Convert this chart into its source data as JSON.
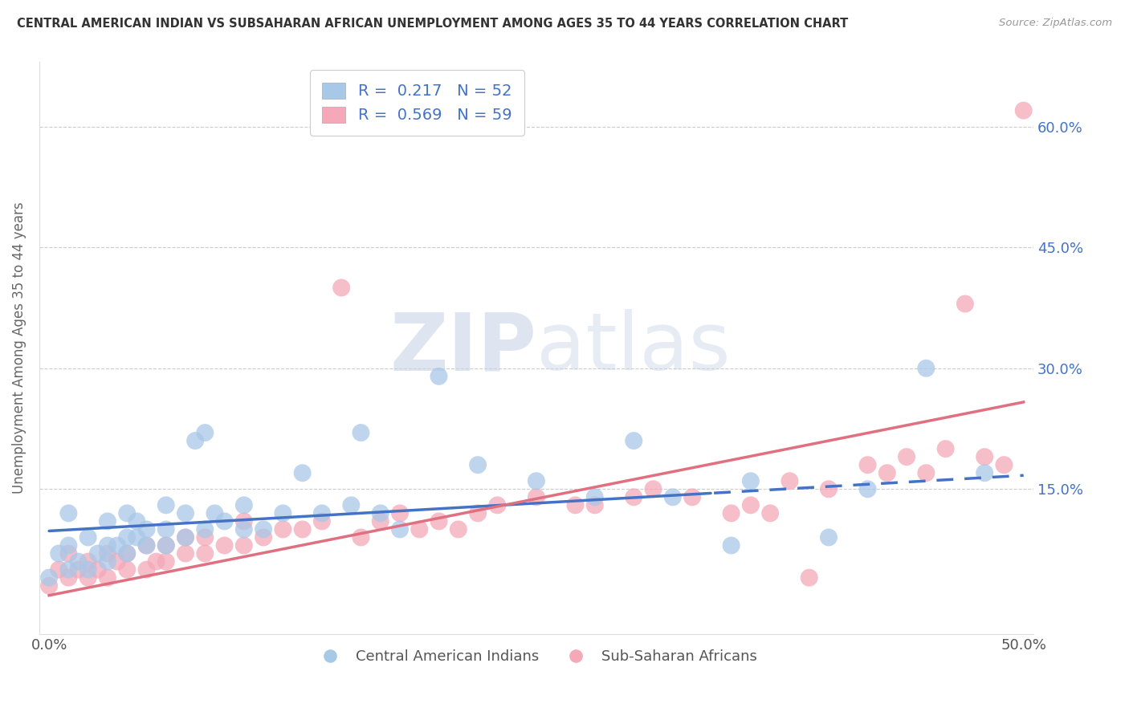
{
  "title": "CENTRAL AMERICAN INDIAN VS SUBSAHARAN AFRICAN UNEMPLOYMENT AMONG AGES 35 TO 44 YEARS CORRELATION CHART",
  "source": "Source: ZipAtlas.com",
  "ylabel": "Unemployment Among Ages 35 to 44 years",
  "xlim": [
    -0.005,
    0.505
  ],
  "ylim": [
    -0.03,
    0.68
  ],
  "xtick_labels": [
    "0.0%",
    "50.0%"
  ],
  "xtick_vals": [
    0.0,
    0.5
  ],
  "ytick_labels": [
    "15.0%",
    "30.0%",
    "45.0%",
    "60.0%"
  ],
  "yticks": [
    0.15,
    0.3,
    0.45,
    0.6
  ],
  "blue_R": 0.217,
  "blue_N": 52,
  "pink_R": 0.569,
  "pink_N": 59,
  "blue_color": "#a8c8e8",
  "pink_color": "#f4a8b8",
  "blue_line_color": "#4472C4",
  "pink_line_color": "#E07080",
  "legend_label_blue": "Central American Indians",
  "legend_label_pink": "Sub-Saharan Africans",
  "blue_line_intercept": 0.098,
  "blue_line_slope": 0.138,
  "pink_line_intercept": 0.018,
  "pink_line_slope": 0.48,
  "blue_scatter_x": [
    0.0,
    0.005,
    0.01,
    0.01,
    0.01,
    0.015,
    0.02,
    0.02,
    0.025,
    0.03,
    0.03,
    0.03,
    0.035,
    0.04,
    0.04,
    0.04,
    0.045,
    0.045,
    0.05,
    0.05,
    0.06,
    0.06,
    0.06,
    0.07,
    0.07,
    0.075,
    0.08,
    0.08,
    0.085,
    0.09,
    0.1,
    0.1,
    0.11,
    0.12,
    0.13,
    0.14,
    0.155,
    0.16,
    0.17,
    0.18,
    0.2,
    0.22,
    0.25,
    0.28,
    0.3,
    0.32,
    0.35,
    0.36,
    0.4,
    0.42,
    0.45,
    0.48
  ],
  "blue_scatter_y": [
    0.04,
    0.07,
    0.05,
    0.08,
    0.12,
    0.06,
    0.05,
    0.09,
    0.07,
    0.06,
    0.08,
    0.11,
    0.08,
    0.07,
    0.09,
    0.12,
    0.09,
    0.11,
    0.08,
    0.1,
    0.08,
    0.1,
    0.13,
    0.09,
    0.12,
    0.21,
    0.1,
    0.22,
    0.12,
    0.11,
    0.1,
    0.13,
    0.1,
    0.12,
    0.17,
    0.12,
    0.13,
    0.22,
    0.12,
    0.1,
    0.29,
    0.18,
    0.16,
    0.14,
    0.21,
    0.14,
    0.08,
    0.16,
    0.09,
    0.15,
    0.3,
    0.17
  ],
  "pink_scatter_x": [
    0.0,
    0.005,
    0.01,
    0.01,
    0.015,
    0.02,
    0.02,
    0.025,
    0.03,
    0.03,
    0.035,
    0.04,
    0.04,
    0.05,
    0.05,
    0.055,
    0.06,
    0.06,
    0.07,
    0.07,
    0.08,
    0.08,
    0.09,
    0.1,
    0.1,
    0.11,
    0.12,
    0.13,
    0.14,
    0.15,
    0.16,
    0.17,
    0.18,
    0.19,
    0.2,
    0.21,
    0.22,
    0.23,
    0.25,
    0.27,
    0.28,
    0.3,
    0.31,
    0.33,
    0.35,
    0.36,
    0.37,
    0.38,
    0.39,
    0.4,
    0.42,
    0.43,
    0.44,
    0.45,
    0.46,
    0.47,
    0.48,
    0.49,
    0.5
  ],
  "pink_scatter_y": [
    0.03,
    0.05,
    0.04,
    0.07,
    0.05,
    0.04,
    0.06,
    0.05,
    0.04,
    0.07,
    0.06,
    0.05,
    0.07,
    0.05,
    0.08,
    0.06,
    0.06,
    0.08,
    0.07,
    0.09,
    0.07,
    0.09,
    0.08,
    0.08,
    0.11,
    0.09,
    0.1,
    0.1,
    0.11,
    0.4,
    0.09,
    0.11,
    0.12,
    0.1,
    0.11,
    0.1,
    0.12,
    0.13,
    0.14,
    0.13,
    0.13,
    0.14,
    0.15,
    0.14,
    0.12,
    0.13,
    0.12,
    0.16,
    0.04,
    0.15,
    0.18,
    0.17,
    0.19,
    0.17,
    0.2,
    0.38,
    0.19,
    0.18,
    0.62
  ]
}
